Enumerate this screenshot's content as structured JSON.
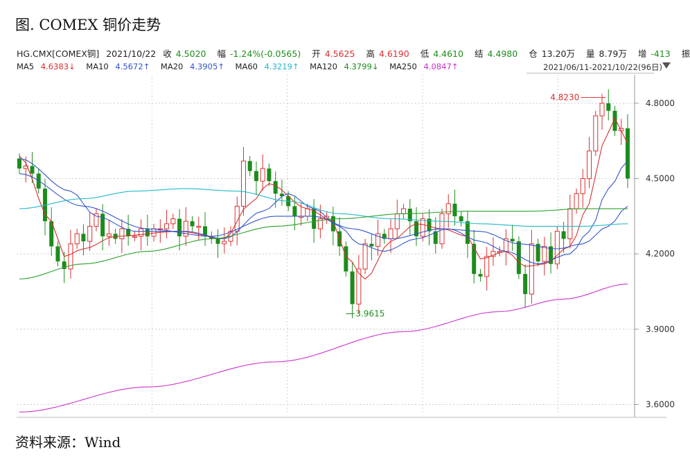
{
  "title": "图. COMEX 铜价走势",
  "source": "资料来源：Wind",
  "quote": {
    "symbol": "HG.CMX[COMEX铜]",
    "date": "2021/10/22",
    "close_label": "收",
    "close": "4.5020",
    "change_label": "幅",
    "change": "-1.24%(-0.0565)",
    "open_label": "开",
    "open": "4.5625",
    "high_label": "高",
    "high": "4.6190",
    "low_label": "低",
    "low": "4.4610",
    "settle_label": "结",
    "settle": "4.4980",
    "oi_label": "仓",
    "oi": "13.20万",
    "vol_label": "量",
    "vol": "8.79万",
    "oi_change_label": "增",
    "oi_change": "-413",
    "amp_label": "振"
  },
  "ma_legend": [
    {
      "label": "MA5",
      "value": "4.6383↓",
      "color": "#d93030"
    },
    {
      "label": "MA10",
      "value": "4.5672↑",
      "color": "#3355cc"
    },
    {
      "label": "MA20",
      "value": "4.3905↑",
      "color": "#3355cc"
    },
    {
      "label": "MA60",
      "value": "4.3219↑",
      "color": "#22b8c8"
    },
    {
      "label": "MA120",
      "value": "4.3799↓",
      "color": "#2aa02a"
    },
    {
      "label": "MA250",
      "value": "4.0847↑",
      "color": "#cc33cc"
    }
  ],
  "range_text": "2021/06/11-2021/10/22(96日)",
  "chart_data": {
    "type": "candlestick",
    "x_range": [
      "2021/06/11",
      "2021/10/22"
    ],
    "count": 96,
    "ylim": [
      3.56,
      4.88
    ],
    "y_ticks": [
      "4.8000",
      "4.5000",
      "4.2000",
      "3.9000",
      "3.6000"
    ],
    "grid": true,
    "annotations": [
      {
        "text": "4.8230",
        "index": 92,
        "value": 4.823,
        "kind": "max",
        "color": "#d93030"
      },
      {
        "text": "3.9615",
        "index": 51,
        "value": 3.9615,
        "kind": "min",
        "color": "#1c8c1c"
      }
    ],
    "up_color": "#d93030",
    "down_color": "#1c8c1c",
    "closes": [
      4.54,
      4.55,
      4.52,
      4.46,
      4.33,
      4.23,
      4.17,
      4.14,
      4.24,
      4.28,
      4.25,
      4.31,
      4.36,
      4.27,
      4.28,
      4.26,
      4.3,
      4.27,
      4.27,
      4.3,
      4.27,
      4.3,
      4.3,
      4.32,
      4.34,
      4.27,
      4.33,
      4.31,
      4.31,
      4.27,
      4.26,
      4.24,
      4.25,
      4.29,
      4.39,
      4.57,
      4.53,
      4.49,
      4.54,
      4.49,
      4.44,
      4.43,
      4.39,
      4.35,
      4.35,
      4.38,
      4.3,
      4.34,
      4.35,
      4.29,
      4.23,
      4.13,
      4.0,
      4.14,
      4.24,
      4.23,
      4.28,
      4.26,
      4.3,
      4.36,
      4.38,
      4.33,
      4.27,
      4.34,
      4.29,
      4.24,
      4.36,
      4.4,
      4.35,
      4.33,
      4.24,
      4.12,
      4.11,
      4.19,
      4.21,
      4.21,
      4.26,
      4.25,
      4.12,
      4.04,
      4.24,
      4.17,
      4.23,
      4.16,
      4.29,
      4.26,
      4.38,
      4.44,
      4.5,
      4.61,
      4.75,
      4.8,
      4.77,
      4.69,
      4.7,
      4.5
    ],
    "ma_series": [
      {
        "name": "MA5",
        "color": "#d93030",
        "anchors": [
          [
            0,
            4.59
          ],
          [
            5,
            4.33
          ],
          [
            7,
            4.19
          ],
          [
            10,
            4.22
          ],
          [
            15,
            4.27
          ],
          [
            25,
            4.29
          ],
          [
            32,
            4.26
          ],
          [
            36,
            4.4
          ],
          [
            39,
            4.48
          ],
          [
            45,
            4.38
          ],
          [
            49,
            4.33
          ],
          [
            51,
            4.19
          ],
          [
            54,
            4.1
          ],
          [
            58,
            4.25
          ],
          [
            62,
            4.32
          ],
          [
            66,
            4.3
          ],
          [
            70,
            4.27
          ],
          [
            72,
            4.18
          ],
          [
            76,
            4.21
          ],
          [
            79,
            4.15
          ],
          [
            82,
            4.16
          ],
          [
            86,
            4.23
          ],
          [
            89,
            4.4
          ],
          [
            91,
            4.63
          ],
          [
            93,
            4.74
          ],
          [
            95,
            4.64
          ]
        ]
      },
      {
        "name": "MA10",
        "color": "#3355cc",
        "anchors": [
          [
            0,
            4.58
          ],
          [
            8,
            4.45
          ],
          [
            12,
            4.35
          ],
          [
            18,
            4.29
          ],
          [
            26,
            4.29
          ],
          [
            32,
            4.26
          ],
          [
            38,
            4.37
          ],
          [
            42,
            4.44
          ],
          [
            46,
            4.38
          ],
          [
            50,
            4.31
          ],
          [
            53,
            4.24
          ],
          [
            57,
            4.21
          ],
          [
            62,
            4.26
          ],
          [
            67,
            4.3
          ],
          [
            72,
            4.25
          ],
          [
            76,
            4.21
          ],
          [
            81,
            4.16
          ],
          [
            86,
            4.2
          ],
          [
            89,
            4.29
          ],
          [
            92,
            4.46
          ],
          [
            95,
            4.57
          ]
        ]
      },
      {
        "name": "MA20",
        "color": "#3355cc",
        "anchors": [
          [
            0,
            4.52
          ],
          [
            10,
            4.39
          ],
          [
            20,
            4.3
          ],
          [
            30,
            4.27
          ],
          [
            40,
            4.35
          ],
          [
            46,
            4.35
          ],
          [
            52,
            4.3
          ],
          [
            58,
            4.26
          ],
          [
            66,
            4.3
          ],
          [
            72,
            4.29
          ],
          [
            78,
            4.24
          ],
          [
            84,
            4.22
          ],
          [
            88,
            4.24
          ],
          [
            92,
            4.31
          ],
          [
            95,
            4.39
          ]
        ]
      },
      {
        "name": "MA60",
        "color": "#22b8c8",
        "anchors": [
          [
            0,
            4.38
          ],
          [
            10,
            4.42
          ],
          [
            18,
            4.45
          ],
          [
            26,
            4.46
          ],
          [
            34,
            4.45
          ],
          [
            42,
            4.41
          ],
          [
            50,
            4.36
          ],
          [
            58,
            4.34
          ],
          [
            66,
            4.33
          ],
          [
            72,
            4.32
          ],
          [
            80,
            4.31
          ],
          [
            88,
            4.31
          ],
          [
            95,
            4.32
          ]
        ]
      },
      {
        "name": "MA120",
        "color": "#2aa02a",
        "anchors": [
          [
            0,
            4.1
          ],
          [
            10,
            4.16
          ],
          [
            20,
            4.21
          ],
          [
            30,
            4.26
          ],
          [
            40,
            4.31
          ],
          [
            50,
            4.34
          ],
          [
            60,
            4.36
          ],
          [
            70,
            4.37
          ],
          [
            80,
            4.37
          ],
          [
            88,
            4.38
          ],
          [
            95,
            4.38
          ]
        ]
      },
      {
        "name": "MA250",
        "color": "#cc33cc",
        "anchors": [
          [
            0,
            3.57
          ],
          [
            20,
            3.67
          ],
          [
            40,
            3.77
          ],
          [
            60,
            3.89
          ],
          [
            75,
            3.97
          ],
          [
            85,
            4.02
          ],
          [
            95,
            4.08
          ]
        ]
      }
    ]
  }
}
